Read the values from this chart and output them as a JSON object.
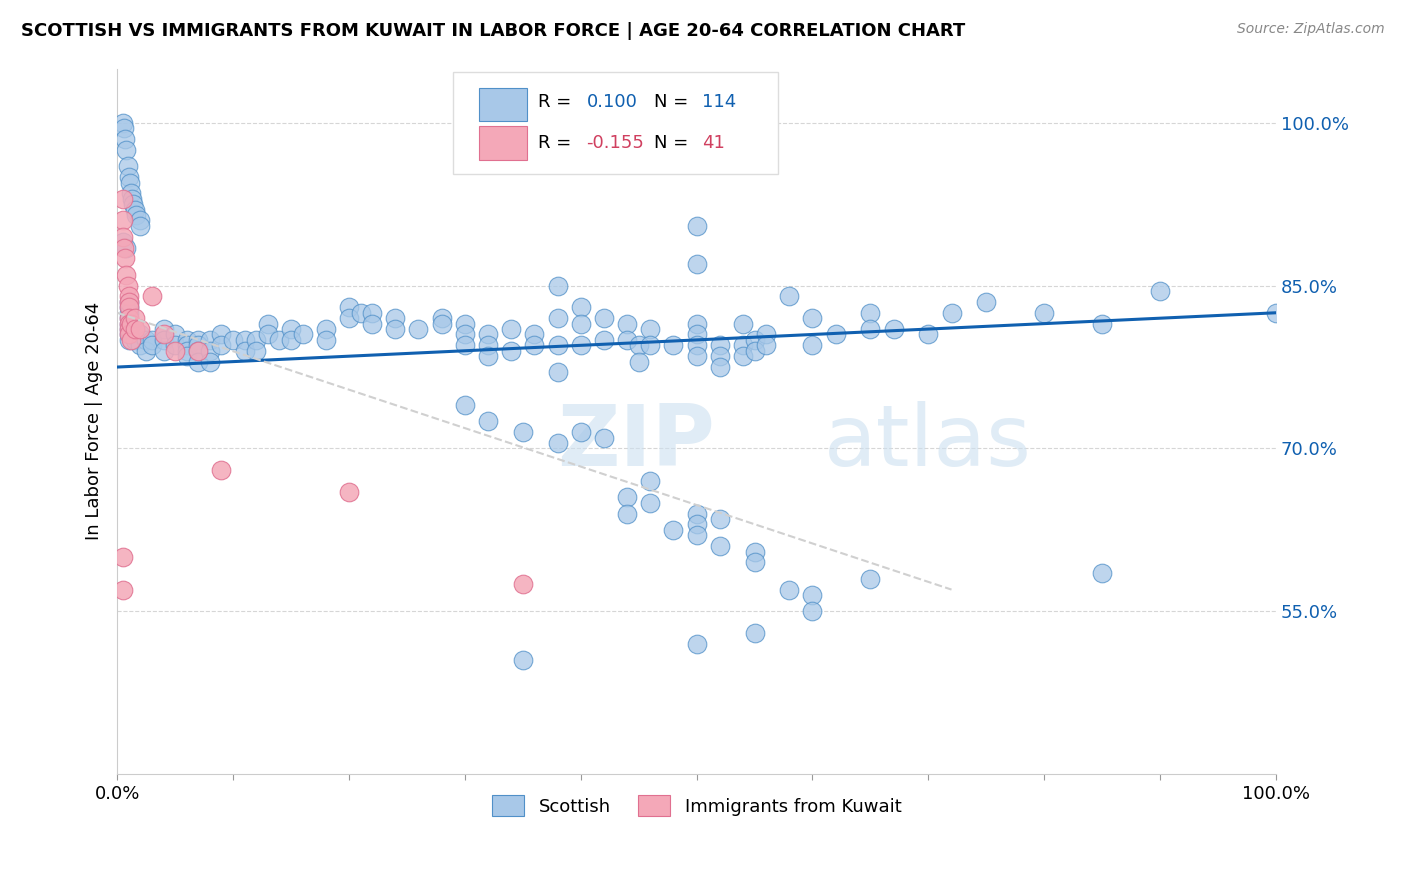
{
  "title": "SCOTTISH VS IMMIGRANTS FROM KUWAIT IN LABOR FORCE | AGE 20-64 CORRELATION CHART",
  "source": "Source: ZipAtlas.com",
  "ylabel": "In Labor Force | Age 20-64",
  "legend_blue_r": "0.100",
  "legend_blue_n": "114",
  "legend_pink_r": "-0.155",
  "legend_pink_n": "41",
  "watermark_zip": "ZIP",
  "watermark_atlas": "atlas",
  "blue_color": "#a8c8e8",
  "pink_color": "#f4a8b8",
  "blue_edge_color": "#5090c8",
  "pink_edge_color": "#e07090",
  "blue_line_color": "#1060b0",
  "pink_line_color": "#d0d0d0",
  "blue_scatter": [
    [
      0.005,
      100.0
    ],
    [
      0.006,
      99.5
    ],
    [
      0.007,
      98.5
    ],
    [
      0.008,
      97.5
    ],
    [
      0.009,
      96.0
    ],
    [
      0.01,
      95.0
    ],
    [
      0.011,
      94.5
    ],
    [
      0.012,
      93.5
    ],
    [
      0.013,
      93.0
    ],
    [
      0.014,
      92.5
    ],
    [
      0.015,
      92.0
    ],
    [
      0.016,
      91.5
    ],
    [
      0.02,
      91.0
    ],
    [
      0.02,
      90.5
    ],
    [
      0.005,
      89.0
    ],
    [
      0.008,
      88.5
    ],
    [
      0.01,
      83.5
    ],
    [
      0.01,
      83.0
    ],
    [
      0.01,
      82.5
    ],
    [
      0.01,
      82.0
    ],
    [
      0.01,
      81.5
    ],
    [
      0.01,
      81.0
    ],
    [
      0.01,
      80.5
    ],
    [
      0.01,
      80.0
    ],
    [
      0.012,
      80.5
    ],
    [
      0.015,
      81.0
    ],
    [
      0.015,
      80.0
    ],
    [
      0.02,
      80.5
    ],
    [
      0.02,
      79.5
    ],
    [
      0.025,
      80.0
    ],
    [
      0.025,
      79.0
    ],
    [
      0.03,
      80.0
    ],
    [
      0.03,
      79.5
    ],
    [
      0.04,
      81.0
    ],
    [
      0.04,
      80.0
    ],
    [
      0.04,
      79.0
    ],
    [
      0.05,
      80.5
    ],
    [
      0.05,
      79.5
    ],
    [
      0.06,
      80.0
    ],
    [
      0.06,
      79.5
    ],
    [
      0.06,
      79.0
    ],
    [
      0.06,
      78.5
    ],
    [
      0.07,
      80.0
    ],
    [
      0.07,
      79.5
    ],
    [
      0.07,
      79.0
    ],
    [
      0.07,
      78.0
    ],
    [
      0.08,
      80.0
    ],
    [
      0.08,
      79.0
    ],
    [
      0.08,
      78.0
    ],
    [
      0.09,
      80.5
    ],
    [
      0.09,
      79.5
    ],
    [
      0.1,
      80.0
    ],
    [
      0.11,
      80.0
    ],
    [
      0.11,
      79.0
    ],
    [
      0.12,
      80.0
    ],
    [
      0.12,
      79.0
    ],
    [
      0.13,
      81.5
    ],
    [
      0.13,
      80.5
    ],
    [
      0.14,
      80.0
    ],
    [
      0.15,
      81.0
    ],
    [
      0.15,
      80.0
    ],
    [
      0.16,
      80.5
    ],
    [
      0.18,
      81.0
    ],
    [
      0.18,
      80.0
    ],
    [
      0.2,
      83.0
    ],
    [
      0.2,
      82.0
    ],
    [
      0.21,
      82.5
    ],
    [
      0.22,
      82.5
    ],
    [
      0.22,
      81.5
    ],
    [
      0.24,
      82.0
    ],
    [
      0.24,
      81.0
    ],
    [
      0.26,
      81.0
    ],
    [
      0.28,
      82.0
    ],
    [
      0.28,
      81.5
    ],
    [
      0.3,
      81.5
    ],
    [
      0.3,
      80.5
    ],
    [
      0.3,
      79.5
    ],
    [
      0.32,
      80.5
    ],
    [
      0.32,
      79.5
    ],
    [
      0.32,
      78.5
    ],
    [
      0.34,
      81.0
    ],
    [
      0.34,
      79.0
    ],
    [
      0.36,
      80.5
    ],
    [
      0.36,
      79.5
    ],
    [
      0.38,
      85.0
    ],
    [
      0.38,
      82.0
    ],
    [
      0.38,
      79.5
    ],
    [
      0.38,
      77.0
    ],
    [
      0.4,
      83.0
    ],
    [
      0.4,
      81.5
    ],
    [
      0.4,
      79.5
    ],
    [
      0.42,
      82.0
    ],
    [
      0.42,
      80.0
    ],
    [
      0.44,
      81.5
    ],
    [
      0.44,
      80.0
    ],
    [
      0.45,
      79.5
    ],
    [
      0.45,
      78.0
    ],
    [
      0.46,
      81.0
    ],
    [
      0.46,
      79.5
    ],
    [
      0.48,
      79.5
    ],
    [
      0.5,
      90.5
    ],
    [
      0.5,
      87.0
    ],
    [
      0.5,
      81.5
    ],
    [
      0.5,
      80.5
    ],
    [
      0.5,
      79.5
    ],
    [
      0.5,
      78.5
    ],
    [
      0.52,
      79.5
    ],
    [
      0.52,
      78.5
    ],
    [
      0.52,
      77.5
    ],
    [
      0.54,
      81.5
    ],
    [
      0.54,
      79.5
    ],
    [
      0.54,
      78.5
    ],
    [
      0.55,
      80.0
    ],
    [
      0.55,
      79.0
    ],
    [
      0.56,
      80.5
    ],
    [
      0.56,
      79.5
    ],
    [
      0.58,
      84.0
    ],
    [
      0.6,
      82.0
    ],
    [
      0.6,
      79.5
    ],
    [
      0.62,
      80.5
    ],
    [
      0.65,
      82.5
    ],
    [
      0.65,
      81.0
    ],
    [
      0.67,
      81.0
    ],
    [
      0.7,
      80.5
    ],
    [
      0.72,
      82.5
    ],
    [
      0.75,
      83.5
    ],
    [
      0.8,
      82.5
    ],
    [
      0.85,
      81.5
    ],
    [
      0.9,
      84.5
    ],
    [
      1.0,
      82.5
    ],
    [
      0.3,
      74.0
    ],
    [
      0.32,
      72.5
    ],
    [
      0.35,
      71.5
    ],
    [
      0.38,
      70.5
    ],
    [
      0.4,
      71.5
    ],
    [
      0.42,
      71.0
    ],
    [
      0.44,
      65.5
    ],
    [
      0.44,
      64.0
    ],
    [
      0.46,
      67.0
    ],
    [
      0.46,
      65.0
    ],
    [
      0.48,
      62.5
    ],
    [
      0.5,
      64.0
    ],
    [
      0.5,
      63.0
    ],
    [
      0.5,
      62.0
    ],
    [
      0.52,
      63.5
    ],
    [
      0.52,
      61.0
    ],
    [
      0.55,
      60.5
    ],
    [
      0.55,
      59.5
    ],
    [
      0.58,
      57.0
    ],
    [
      0.6,
      56.5
    ],
    [
      0.6,
      55.0
    ],
    [
      0.65,
      58.0
    ],
    [
      0.85,
      58.5
    ],
    [
      0.35,
      50.5
    ],
    [
      0.5,
      52.0
    ],
    [
      0.55,
      53.0
    ]
  ],
  "pink_scatter": [
    [
      0.005,
      93.0
    ],
    [
      0.005,
      91.0
    ],
    [
      0.005,
      89.5
    ],
    [
      0.006,
      88.5
    ],
    [
      0.007,
      87.5
    ],
    [
      0.008,
      86.0
    ],
    [
      0.009,
      85.0
    ],
    [
      0.01,
      84.0
    ],
    [
      0.01,
      83.5
    ],
    [
      0.01,
      83.0
    ],
    [
      0.01,
      82.0
    ],
    [
      0.01,
      81.5
    ],
    [
      0.01,
      81.0
    ],
    [
      0.01,
      80.5
    ],
    [
      0.012,
      80.0
    ],
    [
      0.012,
      81.5
    ],
    [
      0.015,
      82.0
    ],
    [
      0.015,
      81.0
    ],
    [
      0.02,
      81.0
    ],
    [
      0.03,
      84.0
    ],
    [
      0.04,
      80.5
    ],
    [
      0.05,
      79.0
    ],
    [
      0.07,
      79.0
    ],
    [
      0.09,
      68.0
    ],
    [
      0.2,
      66.0
    ],
    [
      0.35,
      57.5
    ],
    [
      0.005,
      60.0
    ],
    [
      0.005,
      57.0
    ]
  ],
  "blue_trend": [
    0.0,
    1.0,
    77.5,
    82.5
  ],
  "pink_trend": [
    0.0,
    0.72,
    82.5,
    57.0
  ],
  "xlim": [
    0.0,
    1.0
  ],
  "ylim": [
    40.0,
    105.0
  ],
  "ytick_positions": [
    100.0,
    85.0,
    70.0,
    55.0
  ],
  "ytick_labels": [
    "100.0%",
    "85.0%",
    "70.0%",
    "55.0%"
  ],
  "xtick_positions": [
    0.0,
    0.1,
    0.2,
    0.3,
    0.4,
    0.5,
    0.6,
    0.7,
    0.8,
    0.9,
    1.0
  ],
  "grid_color": "#cccccc",
  "grid_alpha": 0.8
}
